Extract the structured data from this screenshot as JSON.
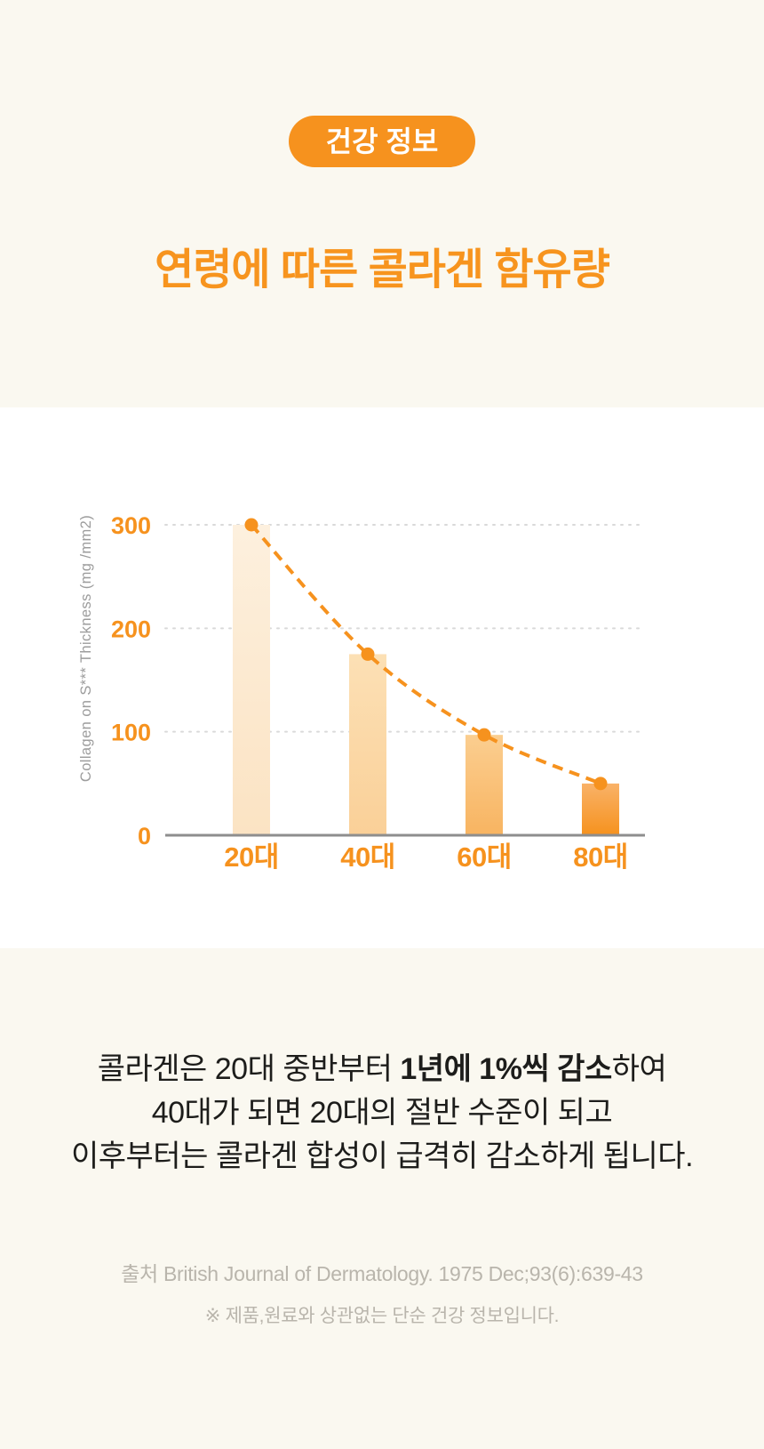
{
  "page": {
    "background_color": "#FAF8F0",
    "panel_background_color": "#FFFFFF",
    "accent_color": "#F6921E"
  },
  "badge": {
    "label": "건강 정보",
    "background_color": "#F6921E",
    "text_color": "#FFFFFF"
  },
  "title": {
    "text": "연령에 따른 콜라겐 함유량",
    "color": "#F7941E"
  },
  "chart_data": {
    "type": "bar",
    "title": "연령에 따른 콜라겐 함유량",
    "categories": [
      "20대",
      "40대",
      "60대",
      "80대"
    ],
    "values": [
      300,
      175,
      97,
      50
    ],
    "line_overlay": {
      "type": "line",
      "style": "dashed",
      "marker": "dot",
      "values": [
        300,
        175,
        97,
        50
      ],
      "color": "#F6921E"
    },
    "xlabel": "",
    "ylabel": "Collagen on S*** Thickness (mg /mm2)",
    "yticks": [
      0,
      100,
      200,
      300
    ],
    "ylim": [
      0,
      320
    ],
    "grid": "dotted-horizontal",
    "legend": "none",
    "accent_color": "#F6921E",
    "tick_label_color": "#F6921E",
    "ylabel_color": "#9C9C9C",
    "axis_color": "#8E8E8E",
    "gridline_color": "#D9D9D9",
    "bar_gradients": [
      [
        "#FDF0DE",
        "#FBE3C3"
      ],
      [
        "#FCE0B5",
        "#FAD098"
      ],
      [
        "#FBCE90",
        "#F8B461"
      ],
      [
        "#F9B268",
        "#F6921E"
      ]
    ]
  },
  "description": {
    "line1_pre": "콜라겐은 20대 중반부터 ",
    "line1_bold": "1년에 1%씩 감소",
    "line1_post": "하여",
    "line2": "40대가 되면 20대의 절반 수준이 되고",
    "line3": "이후부터는 콜라겐 합성이 급격히 감소하게 됩니다."
  },
  "footer": {
    "source": "출처 British Journal of Dermatology. 1975 Dec;93(6):639-43",
    "disclaimer": "※ 제품,원료와 상관없는 단순 건강 정보입니다."
  }
}
